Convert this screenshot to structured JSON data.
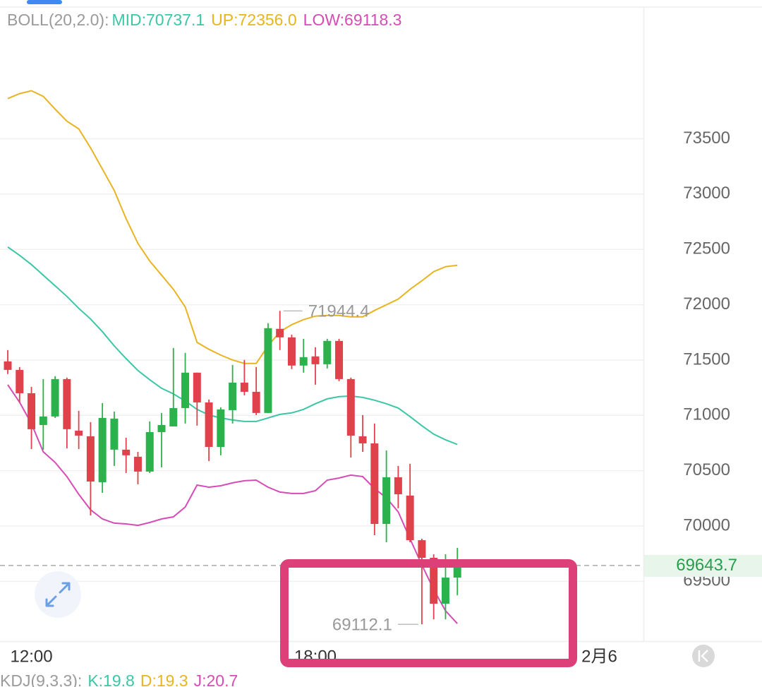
{
  "chart_data": {
    "type": "candlestick",
    "legend": {
      "title": "BOLL(20,2.0):",
      "color": "#9a9a9a"
    },
    "series": [
      {
        "label": "MID:70737.1",
        "color": "#3cc6a6",
        "values": [
          72522,
          72446,
          72363,
          72267,
          72171,
          72075,
          71967,
          71871,
          71756,
          71628,
          71513,
          71405,
          71322,
          71245,
          71194,
          71130,
          71054,
          71003,
          70977,
          70958,
          70945,
          70945,
          70977,
          71009,
          71022,
          71054,
          71105,
          71149,
          71169,
          71175,
          71162,
          71137,
          71105,
          71066,
          70990,
          70907,
          70830,
          70779,
          70737.1
        ]
      },
      {
        "label": "UP:72356.0",
        "color": "#e8b422",
        "values": [
          73863,
          73908,
          73934,
          73883,
          73768,
          73659,
          73589,
          73417,
          73225,
          73033,
          72778,
          72554,
          72395,
          72267,
          72139,
          71980,
          71660,
          71597,
          71545,
          71501,
          71469,
          71469,
          71628,
          71756,
          71820,
          71865,
          71897,
          71903,
          71903,
          71890,
          71890,
          71948,
          71999,
          72050,
          72139,
          72216,
          72299,
          72344,
          72356.0
        ]
      },
      {
        "label": "LOW:69118.3",
        "color": "#d64cb6",
        "values": [
          71277,
          71118,
          70926,
          70671,
          70575,
          70447,
          70287,
          70147,
          70064,
          70026,
          70019,
          70006,
          70032,
          70064,
          70083,
          70172,
          70370,
          70351,
          70364,
          70390,
          70409,
          70415,
          70351,
          70307,
          70294,
          70294,
          70319,
          70415,
          70434,
          70460,
          70447,
          70338,
          70255,
          70128,
          69885,
          69649,
          69425,
          69234,
          69118.3
        ]
      }
    ],
    "open": [
      71488,
      71411,
      71200,
      70913,
      70990,
      71328,
      70862,
      70811,
      70396,
      70690,
      70690,
      70626,
      70492,
      70849,
      70900,
      71066,
      71386,
      71117,
      70715,
      71047,
      71296,
      71213,
      71022,
      71782,
      71705,
      71450,
      71533,
      71462,
      71673,
      71328,
      70811,
      70747,
      70019,
      70441,
      70275,
      69872,
      69713,
      69298,
      69534
    ],
    "high": [
      71590,
      71437,
      71258,
      71328,
      71354,
      71341,
      71041,
      70939,
      71111,
      71034,
      70798,
      70670,
      70945,
      71022,
      71609,
      71565,
      71386,
      71143,
      71073,
      71456,
      71501,
      71437,
      71833,
      71944.4,
      71730,
      71692,
      71616,
      71692,
      71692,
      71341,
      71003,
      70926,
      70683,
      70543,
      70562,
      69885,
      69745,
      69745,
      69802
    ],
    "low": [
      71373,
      71117,
      70696,
      70690,
      70977,
      70702,
      70696,
      70096,
      70300,
      70543,
      70479,
      70377,
      70479,
      70530,
      70900,
      70926,
      70907,
      70587,
      70639,
      70926,
      71181,
      71003,
      71022,
      71590,
      71418,
      71386,
      71277,
      71424,
      71309,
      70619,
      70670,
      69917,
      69853,
      70160,
      69853,
      69112.1,
      69157,
      69157,
      69374
    ],
    "close": [
      71411,
      71200,
      70875,
      70990,
      71328,
      70875,
      70817,
      70402,
      70977,
      70971,
      70639,
      70492,
      70849,
      70913,
      71066,
      71386,
      71117,
      70715,
      71054,
      71296,
      71213,
      71022,
      71788,
      71705,
      71450,
      71526,
      71462,
      71673,
      71328,
      70817,
      70747,
      70019,
      70441,
      70287,
      69872,
      69713,
      69298,
      69534,
      69643.7
    ],
    "up_color": "#2bb24c",
    "down_color": "#e0424c",
    "xlim": [
      -0.656,
      53.73
    ],
    "xticks": [
      {
        "value": 2,
        "label": "12:00"
      },
      {
        "value": 26,
        "label": "18:00"
      },
      {
        "value": 50,
        "label": "2月6"
      }
    ],
    "ylim": [
      68960,
      74690
    ],
    "yticks": [
      69500,
      70000,
      70500,
      71000,
      71500,
      72000,
      72500,
      73000,
      73500
    ],
    "grid": true,
    "annotations": [
      {
        "label": "71944.4",
        "value": 71944.4,
        "anchor": "high"
      },
      {
        "label": "69112.1",
        "value": 69112.1,
        "anchor": "low"
      }
    ],
    "last_price": {
      "label": "69643.7",
      "value": 69643.7,
      "color": "#2a9d4c"
    },
    "indicator_legend": [
      {
        "text": "KDJ(9,3,3):",
        "color": "#9a9a9a"
      },
      {
        "text": "K:19.8",
        "color": "#3cc6a6"
      },
      {
        "text": "D:19.3",
        "color": "#e8b422"
      },
      {
        "text": "J:20.7",
        "color": "#d64cb6"
      }
    ]
  }
}
